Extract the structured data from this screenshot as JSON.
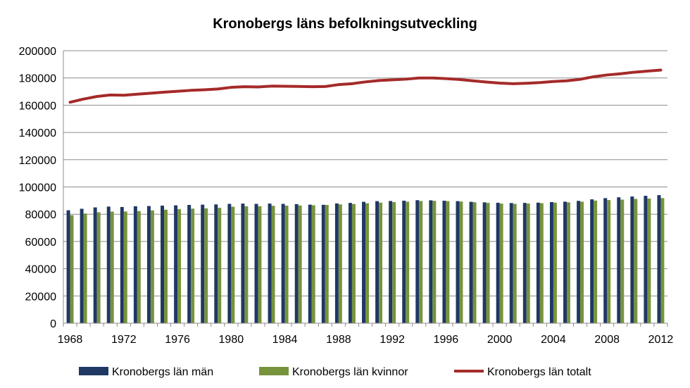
{
  "chart_data": {
    "type": "bar",
    "title": "Kronobergs läns befolkningsutveckling",
    "xlabel": "",
    "ylabel": "",
    "ylim": [
      0,
      200000
    ],
    "yticks": [
      "0",
      "20000",
      "40000",
      "60000",
      "80000",
      "100000",
      "120000",
      "140000",
      "160000",
      "180000",
      "200000"
    ],
    "x_tick_labels": [
      "1968",
      "1972",
      "1976",
      "1980",
      "1984",
      "1988",
      "1992",
      "1996",
      "2000",
      "2004",
      "2008",
      "2012"
    ],
    "grid": true,
    "legend_position": "bottom",
    "categories": [
      1968,
      1969,
      1970,
      1971,
      1972,
      1973,
      1974,
      1975,
      1976,
      1977,
      1978,
      1979,
      1980,
      1981,
      1982,
      1983,
      1984,
      1985,
      1986,
      1987,
      1988,
      1989,
      1990,
      1991,
      1992,
      1993,
      1994,
      1995,
      1996,
      1997,
      1998,
      1999,
      2000,
      2001,
      2002,
      2003,
      2004,
      2005,
      2006,
      2007,
      2008,
      2009,
      2010,
      2011,
      2012
    ],
    "series": [
      {
        "name": "Kronobergs län män",
        "type": "bar",
        "color": "#1f3864",
        "values": [
          82900,
          84000,
          85000,
          85600,
          85300,
          85800,
          86000,
          86300,
          86500,
          86800,
          87000,
          87200,
          87600,
          87800,
          87600,
          87800,
          87600,
          87400,
          87000,
          86900,
          87900,
          88300,
          89100,
          89600,
          89700,
          89900,
          90300,
          90200,
          89900,
          89600,
          89100,
          88700,
          88400,
          88200,
          88300,
          88500,
          88900,
          89200,
          89800,
          90900,
          91800,
          92400,
          93000,
          93500,
          94000
        ]
      },
      {
        "name": "Kronobergs län kvinnor",
        "type": "bar",
        "color": "#77933c",
        "values": [
          79300,
          80500,
          81400,
          81900,
          82000,
          82300,
          82800,
          83300,
          83700,
          84100,
          84300,
          84700,
          85500,
          85800,
          85800,
          86200,
          86300,
          86400,
          86600,
          86800,
          87200,
          87500,
          88000,
          88500,
          88900,
          89200,
          89700,
          89800,
          89600,
          89300,
          88800,
          88300,
          87800,
          87600,
          87800,
          88100,
          88500,
          88700,
          89200,
          90000,
          90400,
          90700,
          91200,
          91500,
          91800
        ]
      },
      {
        "name": "Kronobergs län totalt",
        "type": "line",
        "color": "#a52a2a",
        "values": [
          162200,
          164500,
          166400,
          167500,
          167300,
          168100,
          168800,
          169600,
          170200,
          170900,
          171300,
          171900,
          173100,
          173600,
          173400,
          174000,
          173900,
          173800,
          173600,
          173700,
          175100,
          175800,
          177100,
          178100,
          178600,
          179100,
          180000,
          180000,
          179500,
          178900,
          177900,
          177000,
          176200,
          175800,
          176100,
          176600,
          177400,
          177900,
          179000,
          180900,
          182200,
          183100,
          184200,
          185000,
          185800
        ]
      }
    ]
  }
}
